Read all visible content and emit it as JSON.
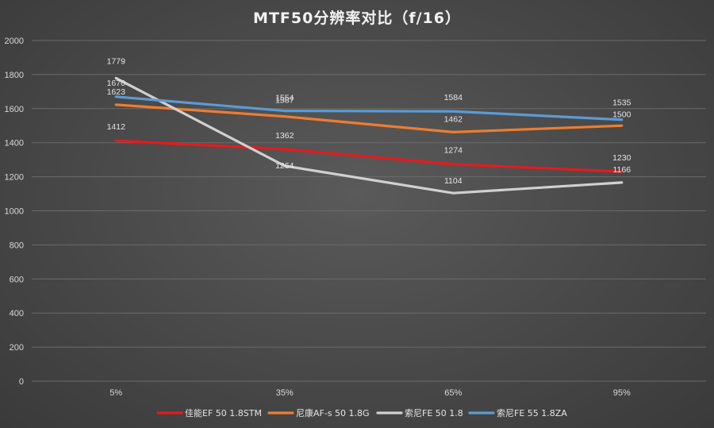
{
  "chart_data": {
    "type": "line",
    "title": "MTF50分辨率对比（f/16）",
    "categories": [
      "5%",
      "35%",
      "65%",
      "95%"
    ],
    "ylim": [
      0,
      2000
    ],
    "yticks": [
      0,
      200,
      400,
      600,
      800,
      1000,
      1200,
      1400,
      1600,
      1800,
      2000
    ],
    "grid": true,
    "legend_position": "bottom",
    "series": [
      {
        "name": "佳能EF 50 1.8STM",
        "color": "#e8191c",
        "values": [
          1412,
          1362,
          1274,
          1230
        ]
      },
      {
        "name": "尼康AF-s 50 1.8G",
        "color": "#ed7d31",
        "values": [
          1623,
          1554,
          1462,
          1500
        ]
      },
      {
        "name": "索尼FE 50 1.8",
        "color": "#d0d0d0",
        "values": [
          1779,
          1264,
          1104,
          1166
        ]
      },
      {
        "name": "索尼FE 55 1.8ZA",
        "color": "#5b9bd5",
        "values": [
          1670,
          1587,
          1584,
          1535
        ]
      }
    ]
  }
}
